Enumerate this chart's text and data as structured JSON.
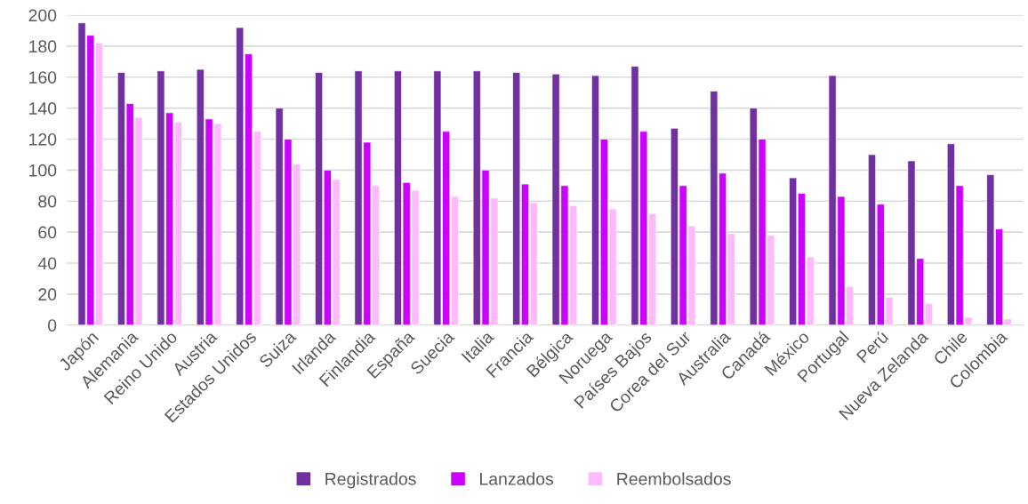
{
  "chart_data": {
    "type": "bar",
    "categories": [
      "Japón",
      "Alemania",
      "Reino Unido",
      "Austria",
      "Estados Unidos",
      "Suiza",
      "Irlanda",
      "Finlandia",
      "España",
      "Suecia",
      "Italia",
      "Francia",
      "Bélgica",
      "Noruega",
      "Países Bajos",
      "Corea del Sur",
      "Australia",
      "Canadá",
      "México",
      "Portugal",
      "Perú",
      "Nueva Zelanda",
      "Chile",
      "Colombia"
    ],
    "series": [
      {
        "name": "Registrados",
        "color": "#7030a0",
        "values": [
          195,
          163,
          164,
          165,
          192,
          140,
          163,
          164,
          164,
          164,
          164,
          163,
          162,
          161,
          167,
          127,
          151,
          140,
          95,
          161,
          110,
          106,
          117,
          97
        ]
      },
      {
        "name": "Lanzados",
        "color": "#cc00ff",
        "values": [
          187,
          143,
          137,
          133,
          175,
          120,
          100,
          118,
          92,
          125,
          100,
          91,
          90,
          120,
          125,
          90,
          98,
          120,
          85,
          83,
          78,
          43,
          90,
          62
        ]
      },
      {
        "name": "Reembolsados",
        "color": "#ffb9ff",
        "values": [
          182,
          134,
          131,
          130,
          125,
          104,
          94,
          90,
          87,
          83,
          82,
          79,
          77,
          75,
          72,
          64,
          59,
          58,
          44,
          25,
          18,
          14,
          5,
          4
        ]
      }
    ],
    "ylim": [
      0,
      200
    ],
    "yticks": [
      0,
      20,
      40,
      60,
      80,
      100,
      120,
      140,
      160,
      180,
      200
    ],
    "grid": "y",
    "legend": "bottom"
  }
}
